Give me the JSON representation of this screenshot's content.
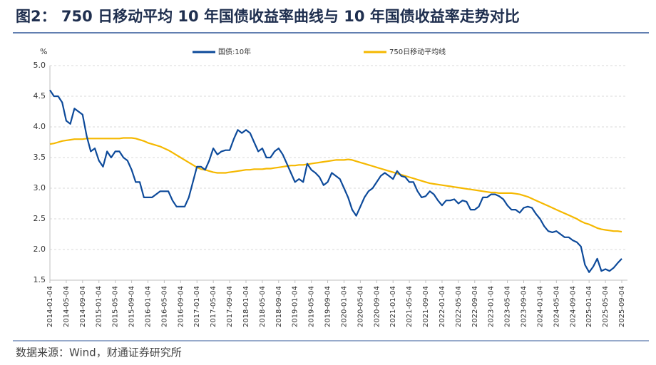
{
  "chart_data": {
    "type": "line",
    "title": "图2： 750 日移动平均 10 年国债收益率曲线与 10 年国债收益率走势对比",
    "y_unit": "%",
    "source": "数据来源：Wind，财通证券研究所",
    "ylim": [
      1.5,
      5.0
    ],
    "yticks": [
      1.5,
      {
        "value": 2.0,
        "label": "2.0"
      },
      2.5,
      {
        "value": 3.0,
        "label": "3.0"
      },
      3.5,
      {
        "value": 4.0,
        "label": "4.0"
      },
      4.5,
      {
        "value": 5.0,
        "label": "5.0"
      }
    ],
    "grid": true,
    "legend": "top",
    "x": [
      "2014-01-04",
      "2014-02-04",
      "2014-03-04",
      "2014-04-04",
      "2014-05-04",
      "2014-06-04",
      "2014-07-04",
      "2014-08-04",
      "2014-09-04",
      "2014-10-04",
      "2014-11-04",
      "2014-12-04",
      "2015-01-04",
      "2015-02-04",
      "2015-03-04",
      "2015-04-04",
      "2015-05-04",
      "2015-06-04",
      "2015-07-04",
      "2015-08-04",
      "2015-09-04",
      "2015-10-04",
      "2015-11-04",
      "2015-12-04",
      "2016-01-04",
      "2016-02-04",
      "2016-03-04",
      "2016-04-04",
      "2016-05-04",
      "2016-06-04",
      "2016-07-04",
      "2016-08-04",
      "2016-09-04",
      "2016-10-04",
      "2016-11-04",
      "2016-12-04",
      "2017-01-04",
      "2017-02-04",
      "2017-03-04",
      "2017-04-04",
      "2017-05-04",
      "2017-06-04",
      "2017-07-04",
      "2017-08-04",
      "2017-09-04",
      "2017-10-04",
      "2017-11-04",
      "2017-12-04",
      "2018-01-04",
      "2018-02-04",
      "2018-03-04",
      "2018-04-04",
      "2018-05-04",
      "2018-06-04",
      "2018-07-04",
      "2018-08-04",
      "2018-09-04",
      "2018-10-04",
      "2018-11-04",
      "2018-12-04",
      "2019-01-04",
      "2019-02-04",
      "2019-03-04",
      "2019-04-04",
      "2019-05-04",
      "2019-06-04",
      "2019-07-04",
      "2019-08-04",
      "2019-09-04",
      "2019-10-04",
      "2019-11-04",
      "2019-12-04",
      "2020-01-04",
      "2020-02-04",
      "2020-03-04",
      "2020-04-04",
      "2020-05-04",
      "2020-06-04",
      "2020-07-04",
      "2020-08-04",
      "2020-09-04",
      "2020-10-04",
      "2020-11-04",
      "2020-12-04",
      "2021-01-04",
      "2021-02-04",
      "2021-03-04",
      "2021-04-04",
      "2021-05-04",
      "2021-06-04",
      "2021-07-04",
      "2021-08-04",
      "2021-09-04",
      "2021-10-04",
      "2021-11-04",
      "2021-12-04",
      "2022-01-04",
      "2022-02-04",
      "2022-03-04",
      "2022-04-04",
      "2022-05-04",
      "2022-06-04",
      "2022-07-04",
      "2022-08-04",
      "2022-09-04",
      "2022-10-04",
      "2022-11-04",
      "2022-12-04",
      "2023-01-04",
      "2023-02-04",
      "2023-03-04",
      "2023-04-04",
      "2023-05-04",
      "2023-06-04",
      "2023-07-04",
      "2023-08-04",
      "2023-09-04",
      "2023-10-04",
      "2023-11-04",
      "2023-12-04",
      "2024-01-04",
      "2024-02-04",
      "2024-03-04",
      "2024-04-04",
      "2024-05-04",
      "2024-06-04",
      "2024-07-04",
      "2024-08-04",
      "2024-09-04",
      "2024-10-04",
      "2024-11-04",
      "2024-12-04",
      "2025-01-04",
      "2025-02-04",
      "2025-03-04",
      "2025-04-04",
      "2025-05-04",
      "2025-06-04",
      "2025-07-04",
      "2025-08-04",
      "2025-09-04"
    ],
    "xticks": [
      "2014-01-04",
      "2014-05-04",
      "2014-09-04",
      "2015-01-04",
      "2015-05-04",
      "2015-09-04",
      "2016-01-04",
      "2016-05-04",
      "2016-09-04",
      "2017-01-04",
      "2017-05-04",
      "2017-09-04",
      "2018-01-04",
      "2018-05-04",
      "2018-09-04",
      "2019-01-04",
      "2019-05-04",
      "2019-09-04",
      "2020-01-04",
      "2020-05-04",
      "2020-09-04",
      "2021-01-04",
      "2021-05-04",
      "2021-09-04",
      "2022-01-04",
      "2022-05-04",
      "2022-09-04",
      "2023-01-04",
      "2023-05-04",
      "2023-09-04",
      "2024-01-04",
      "2024-05-04",
      "2024-09-04",
      "2025-01-04",
      "2025-05-04",
      "2025-09-04"
    ],
    "series": [
      {
        "name": "国债:10年",
        "color": "#0d4a9a",
        "values": [
          4.6,
          4.5,
          4.5,
          4.4,
          4.1,
          4.05,
          4.3,
          4.25,
          4.2,
          3.85,
          3.6,
          3.65,
          3.45,
          3.35,
          3.6,
          3.5,
          3.6,
          3.6,
          3.5,
          3.45,
          3.3,
          3.1,
          3.1,
          2.85,
          2.85,
          2.85,
          2.9,
          2.95,
          2.95,
          2.95,
          2.8,
          2.7,
          2.7,
          2.7,
          2.85,
          3.1,
          3.35,
          3.35,
          3.3,
          3.45,
          3.65,
          3.55,
          3.6,
          3.62,
          3.62,
          3.8,
          3.95,
          3.9,
          3.95,
          3.9,
          3.75,
          3.6,
          3.65,
          3.5,
          3.5,
          3.6,
          3.65,
          3.55,
          3.4,
          3.25,
          3.1,
          3.15,
          3.1,
          3.4,
          3.3,
          3.25,
          3.18,
          3.05,
          3.1,
          3.25,
          3.2,
          3.15,
          3.0,
          2.85,
          2.65,
          2.55,
          2.7,
          2.85,
          2.95,
          3.0,
          3.1,
          3.2,
          3.25,
          3.2,
          3.15,
          3.28,
          3.2,
          3.18,
          3.1,
          3.1,
          2.95,
          2.85,
          2.87,
          2.95,
          2.9,
          2.8,
          2.72,
          2.8,
          2.8,
          2.82,
          2.75,
          2.8,
          2.78,
          2.65,
          2.65,
          2.7,
          2.85,
          2.85,
          2.9,
          2.9,
          2.87,
          2.82,
          2.72,
          2.65,
          2.65,
          2.6,
          2.68,
          2.7,
          2.68,
          2.58,
          2.5,
          2.38,
          2.3,
          2.28,
          2.3,
          2.25,
          2.2,
          2.2,
          2.15,
          2.12,
          2.05,
          1.75,
          1.63,
          1.72,
          1.85,
          1.65,
          1.68,
          1.65,
          1.7,
          1.78,
          1.85
        ]
      },
      {
        "name": "750日移动平均线",
        "color": "#f5b800",
        "values": [
          3.72,
          3.73,
          3.75,
          3.77,
          3.78,
          3.79,
          3.8,
          3.8,
          3.8,
          3.81,
          3.81,
          3.81,
          3.81,
          3.81,
          3.81,
          3.81,
          3.81,
          3.81,
          3.82,
          3.82,
          3.82,
          3.81,
          3.79,
          3.77,
          3.74,
          3.72,
          3.7,
          3.68,
          3.65,
          3.62,
          3.58,
          3.54,
          3.5,
          3.46,
          3.42,
          3.38,
          3.34,
          3.31,
          3.3,
          3.28,
          3.26,
          3.25,
          3.25,
          3.25,
          3.26,
          3.27,
          3.28,
          3.29,
          3.3,
          3.3,
          3.31,
          3.31,
          3.31,
          3.32,
          3.32,
          3.33,
          3.34,
          3.35,
          3.36,
          3.37,
          3.37,
          3.38,
          3.38,
          3.39,
          3.4,
          3.41,
          3.42,
          3.43,
          3.44,
          3.45,
          3.46,
          3.46,
          3.46,
          3.47,
          3.46,
          3.44,
          3.42,
          3.4,
          3.38,
          3.36,
          3.34,
          3.32,
          3.3,
          3.28,
          3.26,
          3.24,
          3.22,
          3.2,
          3.18,
          3.16,
          3.14,
          3.12,
          3.1,
          3.08,
          3.07,
          3.06,
          3.05,
          3.04,
          3.03,
          3.02,
          3.01,
          3.0,
          2.99,
          2.98,
          2.97,
          2.96,
          2.95,
          2.94,
          2.93,
          2.93,
          2.92,
          2.92,
          2.92,
          2.92,
          2.91,
          2.9,
          2.88,
          2.86,
          2.83,
          2.8,
          2.77,
          2.74,
          2.71,
          2.68,
          2.65,
          2.62,
          2.59,
          2.56,
          2.53,
          2.5,
          2.46,
          2.43,
          2.41,
          2.38,
          2.35,
          2.33,
          2.32,
          2.31,
          2.3,
          2.3,
          2.29
        ]
      }
    ]
  }
}
